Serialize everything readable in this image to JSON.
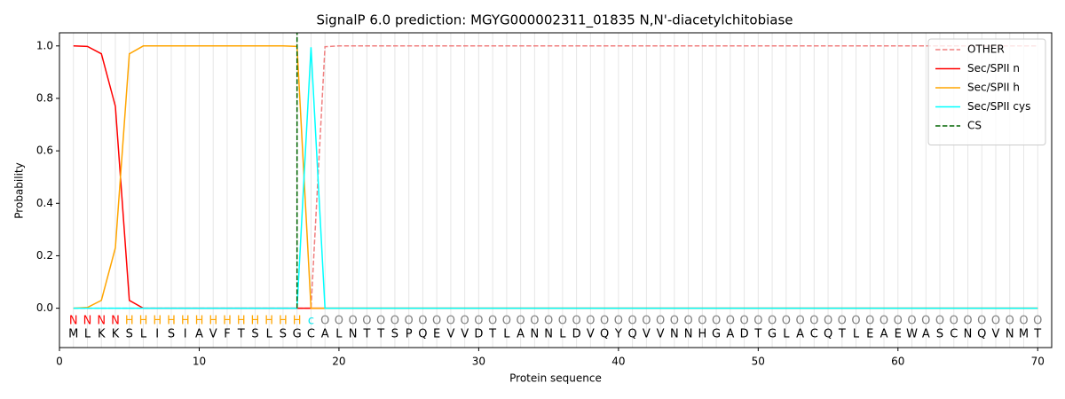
{
  "chart_data": {
    "type": "line",
    "title": "SignalP 6.0 prediction: MGYG000002311_01835 N,N'-diacetylchitobiase",
    "xlabel": "Protein sequence",
    "ylabel": "Probability",
    "xlim": [
      0,
      71
    ],
    "ylim": [
      -0.15,
      1.05
    ],
    "xticks": [
      0,
      10,
      20,
      30,
      40,
      50,
      60,
      70
    ],
    "yticks": [
      {
        "value": 0,
        "label": "0.0"
      },
      {
        "value": 0.2,
        "label": "0.2"
      },
      {
        "value": 0.4,
        "label": "0.4"
      },
      {
        "value": 0.6,
        "label": "0.6"
      },
      {
        "value": 0.8,
        "label": "0.8"
      },
      {
        "value": 1,
        "label": "1.0"
      }
    ],
    "legend": "upper right",
    "x": [
      1,
      2,
      3,
      4,
      5,
      6,
      7,
      8,
      9,
      10,
      11,
      12,
      13,
      14,
      15,
      16,
      17,
      18,
      19,
      20,
      21,
      22,
      23,
      24,
      25,
      26,
      27,
      28,
      29,
      30,
      31,
      32,
      33,
      34,
      35,
      36,
      37,
      38,
      39,
      40,
      41,
      42,
      43,
      44,
      45,
      46,
      47,
      48,
      49,
      50,
      51,
      52,
      53,
      54,
      55,
      56,
      57,
      58,
      59,
      60,
      61,
      62,
      63,
      64,
      65,
      66,
      67,
      68,
      69,
      70
    ],
    "sequence": [
      "M",
      "L",
      "K",
      "K",
      "S",
      "L",
      "I",
      "S",
      "I",
      "A",
      "V",
      "F",
      "T",
      "S",
      "L",
      "S",
      "G",
      "C",
      "A",
      "L",
      "N",
      "T",
      "T",
      "S",
      "P",
      "Q",
      "E",
      "V",
      "V",
      "D",
      "T",
      "L",
      "A",
      "N",
      "N",
      "L",
      "D",
      "V",
      "Q",
      "Y",
      "Q",
      "V",
      "V",
      "N",
      "N",
      "H",
      "G",
      "A",
      "D",
      "T",
      "G",
      "L",
      "A",
      "C",
      "Q",
      "T",
      "L",
      "E",
      "A",
      "E",
      "W",
      "A",
      "S",
      "C",
      "N",
      "Q",
      "V",
      "N",
      "M",
      "T"
    ],
    "labels": [
      "N",
      "N",
      "N",
      "N",
      "H",
      "H",
      "H",
      "H",
      "H",
      "H",
      "H",
      "H",
      "H",
      "H",
      "H",
      "H",
      "H",
      "c",
      "O",
      "O",
      "O",
      "O",
      "O",
      "O",
      "O",
      "O",
      "O",
      "O",
      "O",
      "O",
      "O",
      "O",
      "O",
      "O",
      "O",
      "O",
      "O",
      "O",
      "O",
      "O",
      "O",
      "O",
      "O",
      "O",
      "O",
      "O",
      "O",
      "O",
      "O",
      "O",
      "O",
      "O",
      "O",
      "O",
      "O",
      "O",
      "O",
      "O",
      "O",
      "O",
      "O",
      "O",
      "O",
      "O",
      "O",
      "O",
      "O",
      "O",
      "O",
      "O"
    ],
    "label_colors": {
      "N": "#ff0000",
      "H": "#ffa500",
      "c": "#00e5ee",
      "O": "#808080"
    },
    "series": [
      {
        "name": "OTHER",
        "color": "#f08080",
        "dash": true,
        "values": [
          0,
          0,
          0,
          0,
          0,
          0,
          0,
          0,
          0,
          0,
          0,
          0,
          0,
          0,
          0,
          0,
          0,
          0,
          0.997,
          1,
          1,
          1,
          1,
          1,
          1,
          1,
          1,
          1,
          1,
          1,
          1,
          1,
          1,
          1,
          1,
          1,
          1,
          1,
          1,
          1,
          1,
          1,
          1,
          1,
          1,
          1,
          1,
          1,
          1,
          1,
          1,
          1,
          1,
          1,
          1,
          1,
          1,
          1,
          1,
          1,
          1,
          1,
          1,
          1,
          1,
          1,
          1,
          1,
          1,
          1
        ]
      },
      {
        "name": "Sec/SPII n",
        "color": "#ff0000",
        "dash": false,
        "values": [
          1,
          0.998,
          0.97,
          0.77,
          0.03,
          0,
          0,
          0,
          0,
          0,
          0,
          0,
          0,
          0,
          0,
          0,
          0,
          0,
          0,
          0,
          0,
          0,
          0,
          0,
          0,
          0,
          0,
          0,
          0,
          0,
          0,
          0,
          0,
          0,
          0,
          0,
          0,
          0,
          0,
          0,
          0,
          0,
          0,
          0,
          0,
          0,
          0,
          0,
          0,
          0,
          0,
          0,
          0,
          0,
          0,
          0,
          0,
          0,
          0,
          0,
          0,
          0,
          0,
          0,
          0,
          0,
          0,
          0,
          0,
          0
        ]
      },
      {
        "name": "Sec/SPII h",
        "color": "#ffa500",
        "dash": false,
        "values": [
          0,
          0.003,
          0.03,
          0.23,
          0.97,
          1,
          1,
          1,
          1,
          1,
          1,
          1,
          1,
          1,
          1,
          1,
          0.998,
          0,
          0,
          0,
          0,
          0,
          0,
          0,
          0,
          0,
          0,
          0,
          0,
          0,
          0,
          0,
          0,
          0,
          0,
          0,
          0,
          0,
          0,
          0,
          0,
          0,
          0,
          0,
          0,
          0,
          0,
          0,
          0,
          0,
          0,
          0,
          0,
          0,
          0,
          0,
          0,
          0,
          0,
          0,
          0,
          0,
          0,
          0,
          0,
          0,
          0,
          0,
          0,
          0
        ]
      },
      {
        "name": "Sec/SPII cys",
        "color": "#00ffff",
        "dash": false,
        "values": [
          0,
          0,
          0,
          0,
          0,
          0,
          0,
          0,
          0,
          0,
          0,
          0,
          0,
          0,
          0,
          0,
          0,
          0.995,
          0,
          0,
          0,
          0,
          0,
          0,
          0,
          0,
          0,
          0,
          0,
          0,
          0,
          0,
          0,
          0,
          0,
          0,
          0,
          0,
          0,
          0,
          0,
          0,
          0,
          0,
          0,
          0,
          0,
          0,
          0,
          0,
          0,
          0,
          0,
          0,
          0,
          0,
          0,
          0,
          0,
          0,
          0,
          0,
          0,
          0,
          0,
          0,
          0,
          0,
          0,
          0
        ]
      }
    ],
    "cs": {
      "name": "CS",
      "x": 17,
      "color": "#006400"
    }
  }
}
